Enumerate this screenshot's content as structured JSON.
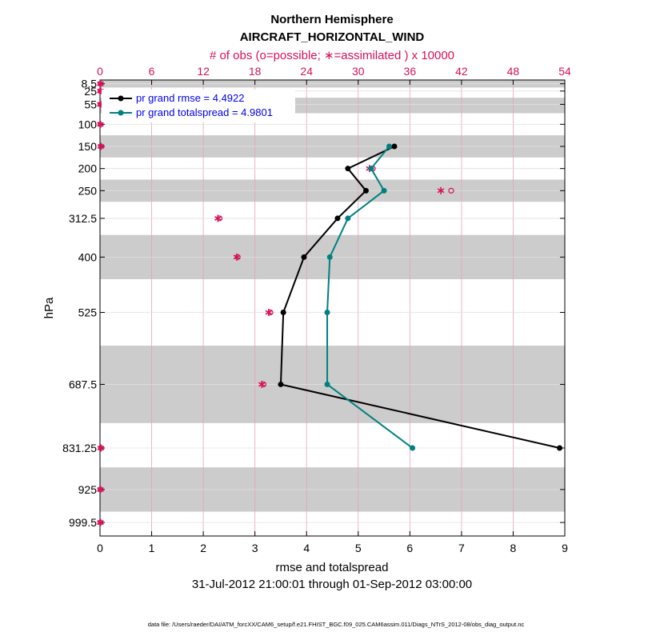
{
  "chart_data": {
    "type": "line",
    "title": "Northern Hemisphere",
    "subtitle": "AIRCRAFT_HORIZONTAL_WIND",
    "top_axis_label": "# of obs (o=possible; ∗=assimilated ) x 10000",
    "xlabel": "rmse and totalspread",
    "ylabel": "hPa",
    "date_range": "31-Jul-2012 21:00:01 through 01-Sep-2012 03:00:00",
    "footer": "data file: /Users/raeder/DAI/ATM_forcXX/CAM6_setup/f.e21.FHIST_BGC.f09_025.CAM6assim.011/Diags_NTrS_2012-08/obs_diag_output.nc",
    "xlim": [
      0,
      9
    ],
    "x_ticks": [
      0,
      1,
      2,
      3,
      4,
      5,
      6,
      7,
      8,
      9
    ],
    "top_xlim": [
      0,
      54
    ],
    "top_ticks": [
      0,
      6,
      12,
      18,
      24,
      30,
      36,
      42,
      48,
      54
    ],
    "ylim": [
      1030,
      0
    ],
    "y_ticks": [
      8.5,
      25,
      55,
      100,
      150,
      200,
      250,
      312.5,
      400,
      525,
      687.5,
      831.25,
      925,
      999.5
    ],
    "y_tick_labels": [
      "8.5",
      "25",
      "55",
      "100",
      "150",
      "200",
      "250",
      "312.5",
      "400",
      "525",
      "687.5",
      "831.25",
      "925",
      "999.5"
    ],
    "bands": [
      [
        0,
        17
      ],
      [
        40,
        75
      ],
      [
        125,
        175
      ],
      [
        225,
        275
      ],
      [
        350,
        450
      ],
      [
        600,
        775
      ],
      [
        875,
        975
      ]
    ],
    "series": [
      {
        "name": "pr grand rmse = 4.4922",
        "color": "#000000",
        "levels": [
          150,
          200,
          250,
          312.5,
          400,
          525,
          687.5,
          831.25
        ],
        "values": [
          5.7,
          4.8,
          5.15,
          4.6,
          3.95,
          3.55,
          3.5,
          8.9
        ]
      },
      {
        "name": "pr grand totalspread = 4.9801",
        "color": "#008080",
        "levels": [
          150,
          200,
          250,
          312.5,
          400,
          525,
          687.5,
          831.25
        ],
        "values": [
          5.6,
          5.25,
          5.5,
          4.8,
          4.45,
          4.4,
          4.4,
          6.05
        ]
      }
    ],
    "obs_counts": {
      "color": "#d6115a",
      "levels": [
        8.5,
        25,
        55,
        100,
        150,
        200,
        250,
        312.5,
        400,
        525,
        687.5,
        831.25,
        925,
        999.5
      ],
      "possible": [
        0.05,
        0.05,
        0.05,
        0.05,
        0.1,
        31.7,
        40.8,
        13.9,
        16.0,
        19.8,
        19.0,
        0.1,
        0.05,
        0.05
      ],
      "assimilated": [
        0.05,
        0.05,
        0.05,
        0.05,
        0.1,
        31.3,
        39.6,
        13.7,
        15.9,
        19.6,
        18.8,
        0.1,
        0.05,
        0.05
      ]
    }
  }
}
